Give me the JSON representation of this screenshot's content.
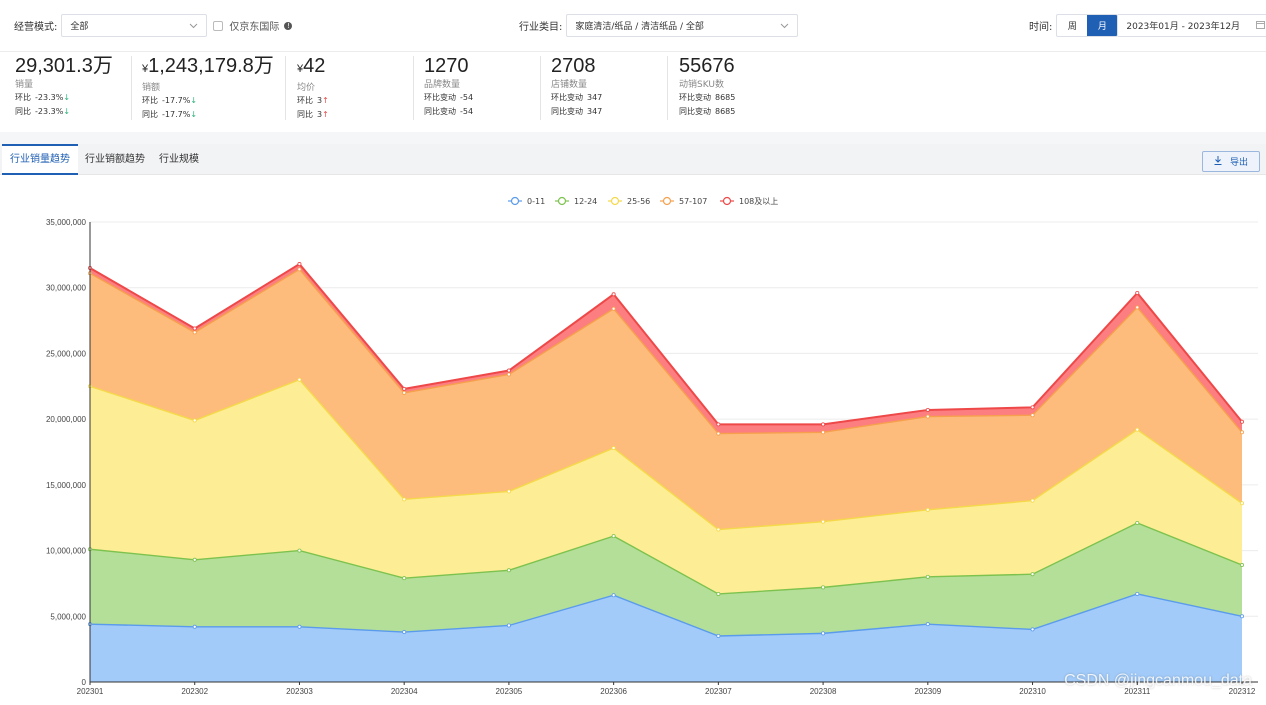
{
  "filters": {
    "mode_label": "经营模式:",
    "mode_value": "全部",
    "jd_intl_label": "仅京东国际",
    "jd_intl_info": "!",
    "category_label": "行业类目:",
    "category_value": "家庭清洁/纸品 / 清洁纸品 / 全部",
    "time_label": "时间:",
    "time_week": "周",
    "time_month": "月",
    "date_range": "2023年01月 - 2023年12月"
  },
  "metrics": [
    {
      "value": "29,301.3万",
      "label": "销量",
      "r1_label": "环比",
      "r1_value": "-23.3%",
      "r1_arrow": "↓",
      "r2_label": "同比",
      "r2_value": "-23.3%",
      "r2_arrow": "↓"
    },
    {
      "prefix": "¥",
      "value": "1,243,179.8万",
      "label": "销额",
      "r1_label": "环比",
      "r1_value": "-17.7%",
      "r1_arrow": "↓",
      "r2_label": "同比",
      "r2_value": "-17.7%",
      "r2_arrow": "↓"
    },
    {
      "prefix": "¥",
      "value": "42",
      "label": "均价",
      "r1_label": "环比",
      "r1_value": "3",
      "r1_arrow": "↑",
      "r2_label": "同比",
      "r2_value": "3",
      "r2_arrow": "↑"
    },
    {
      "value": "1270",
      "label": "品牌数量",
      "r1_label": "环比变动",
      "r1_value": "-54",
      "r2_label": "同比变动",
      "r2_value": "-54"
    },
    {
      "value": "2708",
      "label": "店铺数量",
      "r1_label": "环比变动",
      "r1_value": "347",
      "r2_label": "同比变动",
      "r2_value": "347"
    },
    {
      "value": "55676",
      "label": "动销SKU数",
      "r1_label": "环比变动",
      "r1_value": "8685",
      "r2_label": "同比变动",
      "r2_value": "8685"
    }
  ],
  "tabs": [
    "行业销量趋势",
    "行业销额趋势",
    "行业规模"
  ],
  "export_label": "导出",
  "watermark": "CSDN @jingcanmou_data",
  "colors": {
    "accent": "#1f5fb4",
    "s0_line": "#5b9bec",
    "s0_fill": "#a2cbf9",
    "s1_line": "#7dc24e",
    "s1_fill": "#b3df98",
    "s2_line": "#f5d94a",
    "s2_fill": "#fded95",
    "s3_line": "#f6a04d",
    "s3_fill": "#fdbb7c",
    "s4_line": "#ee4848",
    "s4_fill": "#fc7e80"
  },
  "chart_data": {
    "type": "area",
    "stacked": true,
    "categories": [
      "202301",
      "202302",
      "202303",
      "202304",
      "202305",
      "202306",
      "202307",
      "202308",
      "202309",
      "202310",
      "202311",
      "202312"
    ],
    "ylim": [
      0,
      35000000
    ],
    "yticks": [
      "0",
      "5,000,000",
      "10,000,000",
      "15,000,000",
      "20,000,000",
      "25,000,000",
      "30,000,000",
      "35,000,000"
    ],
    "xlabel": "",
    "ylabel": "",
    "legend_position": "top-center",
    "series": [
      {
        "name": "0-11",
        "values": [
          4400000,
          4200000,
          4200000,
          3800000,
          4300000,
          6600000,
          3500000,
          3700000,
          4400000,
          4000000,
          6700000,
          5000000
        ]
      },
      {
        "name": "12-24",
        "values": [
          5700000,
          5100000,
          5800000,
          4100000,
          4200000,
          4500000,
          3200000,
          3500000,
          3600000,
          4200000,
          5400000,
          3900000
        ]
      },
      {
        "name": "25-56",
        "values": [
          12400000,
          10600000,
          13000000,
          6000000,
          6000000,
          6700000,
          4900000,
          5000000,
          5100000,
          5600000,
          7100000,
          4700000
        ]
      },
      {
        "name": "57-107",
        "values": [
          8600000,
          6700000,
          8400000,
          8100000,
          8900000,
          10600000,
          7300000,
          6800000,
          7100000,
          6500000,
          9300000,
          5400000
        ]
      },
      {
        "name": "108及以上",
        "values": [
          400000,
          300000,
          400000,
          300000,
          300000,
          1100000,
          700000,
          600000,
          500000,
          600000,
          1100000,
          800000
        ]
      }
    ]
  }
}
